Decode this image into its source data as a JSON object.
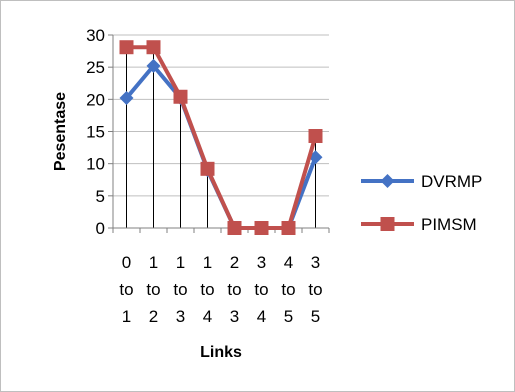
{
  "chart_data": {
    "type": "line",
    "title": "",
    "xlabel": "Links",
    "ylabel": "Pesentase",
    "ylim": [
      0,
      30
    ],
    "yticks": [
      0,
      5,
      10,
      15,
      20,
      25,
      30
    ],
    "grid": "horizontal",
    "legend_position": "right",
    "categories": [
      [
        "0",
        "to",
        "1"
      ],
      [
        "1",
        "to",
        "2"
      ],
      [
        "1",
        "to",
        "3"
      ],
      [
        "1",
        "to",
        "4"
      ],
      [
        "2",
        "to",
        "3"
      ],
      [
        "3",
        "to",
        "4"
      ],
      [
        "4",
        "to",
        "5"
      ],
      [
        "3",
        "to",
        "5"
      ]
    ],
    "series": [
      {
        "name": "DVRMP",
        "marker": "diamond",
        "color": "#4472C4",
        "values": [
          20.2,
          25.2,
          20.2,
          9.0,
          0,
          0,
          0,
          11.0
        ]
      },
      {
        "name": "PIMSM",
        "marker": "square",
        "color": "#C0504D",
        "values": [
          28.1,
          28.1,
          20.4,
          9.2,
          0,
          0,
          0,
          14.3
        ]
      }
    ]
  }
}
